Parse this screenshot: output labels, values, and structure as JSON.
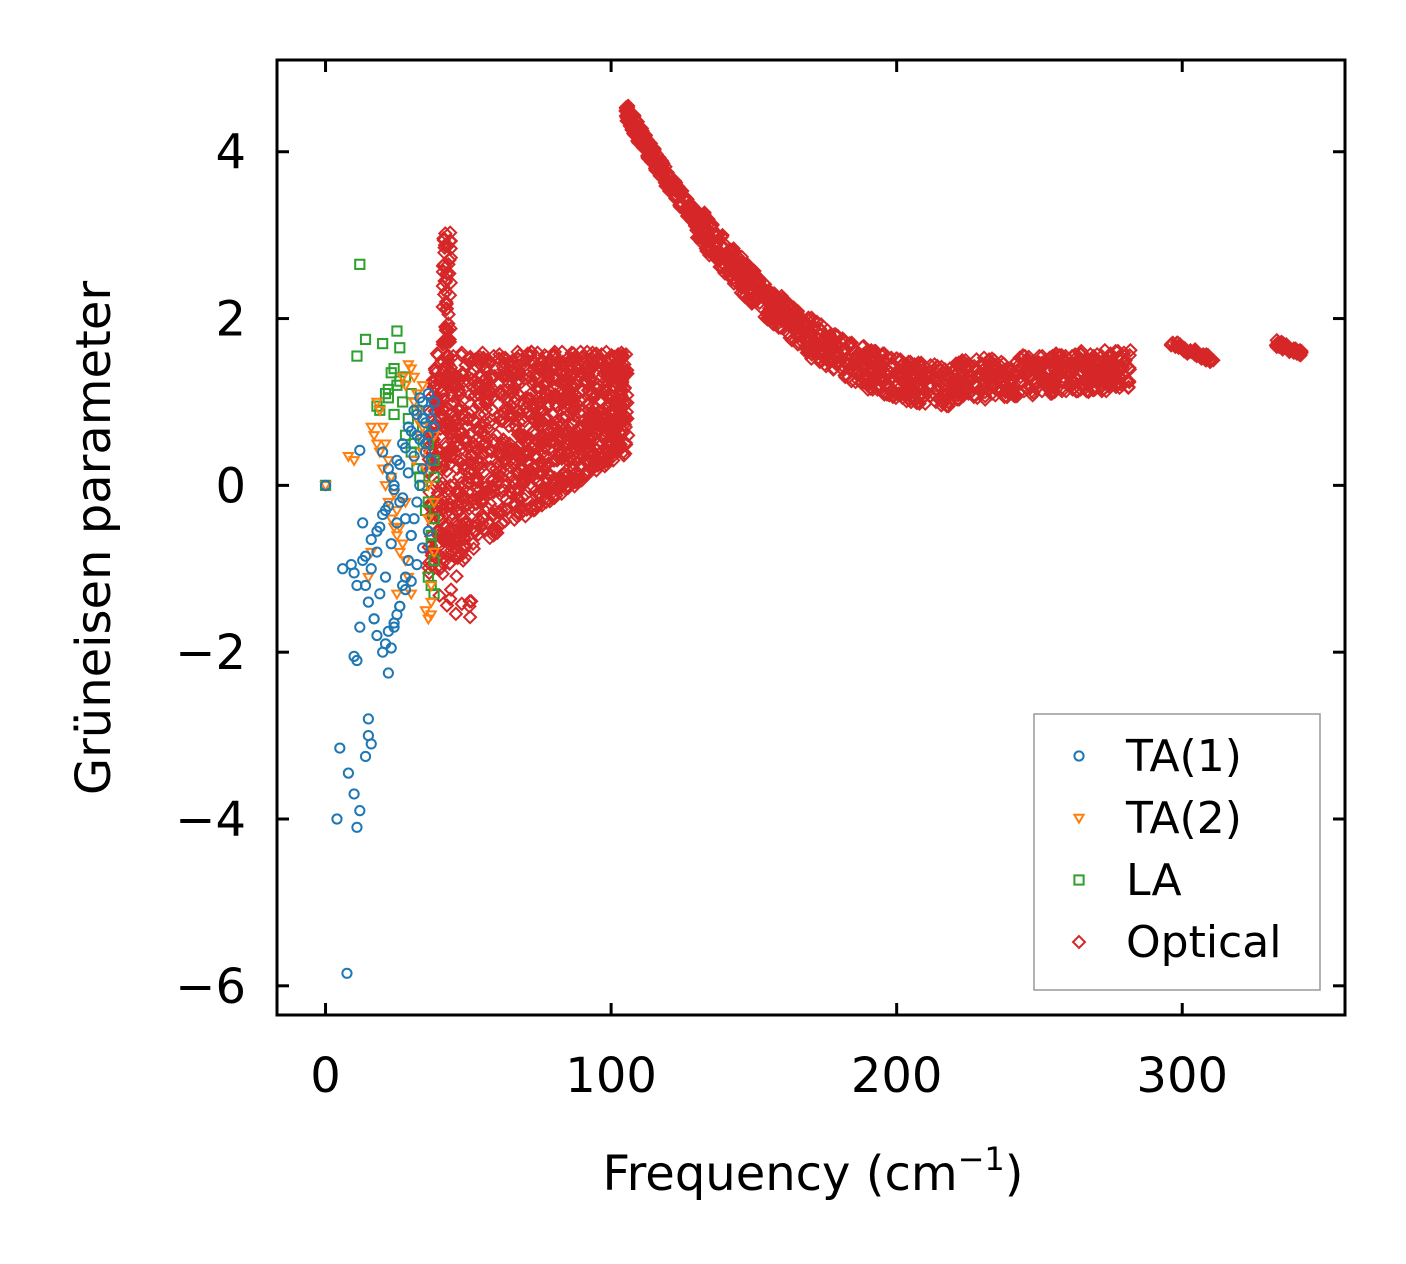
{
  "chart_data": {
    "type": "scatter",
    "title": "",
    "xlabel": "Frequency (cm",
    "xlabel_sup": "−1",
    "xlabel_tail": ")",
    "ylabel": "Grüneisen parameter",
    "xlim": [
      -17,
      357
    ],
    "ylim": [
      -6.35,
      5.1
    ],
    "xticks": [
      0,
      100,
      200,
      300
    ],
    "xtick_labels": [
      "0",
      "100",
      "200",
      "300"
    ],
    "yticks": [
      -6,
      -4,
      -2,
      0,
      2,
      4
    ],
    "ytick_labels": [
      "−6",
      "−4",
      "−2",
      "0",
      "2",
      "4"
    ],
    "grid": false,
    "legend_position": "lower-right",
    "series": [
      {
        "name": "TA(1)",
        "marker": "circle",
        "color": "#1f77b4",
        "x": [
          0,
          7.5,
          5,
          6,
          10,
          11,
          12,
          15,
          8,
          10,
          4,
          11,
          12,
          14,
          15,
          16,
          17,
          18,
          20,
          21,
          22,
          23,
          24,
          25,
          26,
          27,
          28,
          29,
          30,
          31,
          32,
          33,
          34,
          35,
          36,
          37,
          38,
          20,
          22,
          24,
          26,
          28,
          30,
          32,
          34,
          36,
          13,
          14,
          16,
          18,
          19,
          21,
          23,
          25,
          27,
          29,
          31,
          33,
          35,
          37,
          15,
          17,
          19,
          21,
          23,
          25,
          27,
          29,
          31,
          33,
          35,
          9,
          10,
          11,
          12,
          13,
          14,
          16,
          18,
          20,
          22,
          24,
          26,
          28,
          30,
          32,
          34,
          36,
          38,
          22,
          24,
          26,
          28,
          30,
          32,
          34,
          36
        ],
        "y": [
          0,
          -5.85,
          -3.15,
          -1.0,
          -2.05,
          -2.1,
          -1.7,
          -2.8,
          -3.45,
          -3.7,
          -4.0,
          -4.1,
          -3.9,
          -3.25,
          -3.0,
          -3.1,
          -1.6,
          -1.8,
          -2.0,
          -1.9,
          -2.25,
          -1.95,
          -1.7,
          -1.55,
          -1.45,
          -1.2,
          -1.1,
          -0.9,
          -0.6,
          -0.4,
          -0.2,
          0.0,
          0.2,
          0.4,
          0.6,
          0.8,
          1.0,
          0.4,
          0.2,
          0.0,
          -0.2,
          -0.4,
          -0.6,
          0.6,
          0.8,
          1.1,
          -0.9,
          -1.2,
          -1.0,
          -0.8,
          -0.5,
          -0.3,
          0.1,
          0.3,
          0.5,
          0.7,
          0.9,
          1.05,
          0.5,
          0.3,
          -1.4,
          -1.6,
          -1.3,
          -1.1,
          -0.7,
          -0.45,
          -0.15,
          0.15,
          0.35,
          0.55,
          0.75,
          -0.95,
          -1.05,
          -1.2,
          0.42,
          -0.45,
          -0.85,
          -0.65,
          -0.55,
          -0.35,
          -0.25,
          -0.05,
          0.25,
          0.45,
          0.65,
          0.85,
          1.0,
          0.9,
          0.7,
          -1.75,
          -1.65,
          -1.45,
          -1.25,
          -1.15,
          -0.95,
          -0.75,
          -0.55
        ]
      },
      {
        "name": "TA(2)",
        "marker": "triangle-down",
        "color": "#ff7f0e",
        "x": [
          0,
          8,
          10,
          15,
          16,
          18,
          19,
          20,
          21,
          22,
          23,
          24,
          25,
          26,
          27,
          28,
          29,
          30,
          31,
          32,
          33,
          34,
          35,
          36,
          37,
          38,
          16,
          18,
          20,
          22,
          24,
          26,
          28,
          30,
          32,
          34,
          36,
          37,
          38,
          17,
          19,
          21,
          23,
          25,
          27,
          29,
          31,
          33,
          35,
          36,
          37,
          38,
          25,
          28,
          31,
          34
        ],
        "y": [
          0,
          0.35,
          0.3,
          -1.1,
          -0.8,
          1.0,
          0.9,
          0.7,
          0.5,
          0.3,
          0.1,
          -0.1,
          -0.3,
          -0.5,
          -0.7,
          -0.9,
          -1.1,
          -1.3,
          1.3,
          1.1,
          0.9,
          0.7,
          -1.5,
          -1.6,
          -1.4,
          -0.2,
          0.7,
          0.5,
          0.2,
          -0.2,
          -0.5,
          -0.8,
          1.2,
          1.4,
          0.8,
          0.4,
          0.0,
          -1.2,
          0.6,
          0.6,
          0.4,
          0.0,
          -0.4,
          -0.6,
          1.3,
          1.45,
          1.0,
          0.6,
          0.2,
          -0.4,
          -1.55,
          -0.8,
          -1.3,
          -0.2,
          0.3,
          1.2
        ]
      },
      {
        "name": "LA",
        "marker": "square",
        "color": "#2ca02c",
        "x": [
          0,
          12,
          14,
          11,
          20,
          18,
          22,
          24,
          25,
          26,
          28,
          30,
          32,
          34,
          36,
          38,
          22,
          24,
          26,
          28,
          30,
          32,
          34,
          36,
          38,
          37,
          38,
          36,
          38,
          37,
          35,
          33,
          31,
          29,
          27,
          25,
          23,
          21,
          19,
          38,
          37
        ],
        "y": [
          0,
          2.65,
          1.75,
          1.55,
          1.7,
          0.95,
          1.15,
          1.4,
          1.85,
          1.65,
          1.3,
          1.1,
          0.9,
          0.7,
          0.5,
          0.3,
          1.05,
          0.85,
          1.25,
          0.6,
          0.4,
          0.2,
          0.0,
          -0.2,
          -0.4,
          -0.7,
          -0.9,
          -1.1,
          -1.3,
          -0.6,
          -0.3,
          0.1,
          0.5,
          0.8,
          1.0,
          1.2,
          1.35,
          1.1,
          0.9,
          0.1,
          -1.2
        ]
      },
      {
        "name": "Optical",
        "marker": "diamond",
        "color": "#d62728",
        "x": [],
        "y": []
      }
    ]
  },
  "legend": {
    "items": [
      "TA(1)",
      "TA(2)",
      "LA",
      "Optical"
    ]
  }
}
